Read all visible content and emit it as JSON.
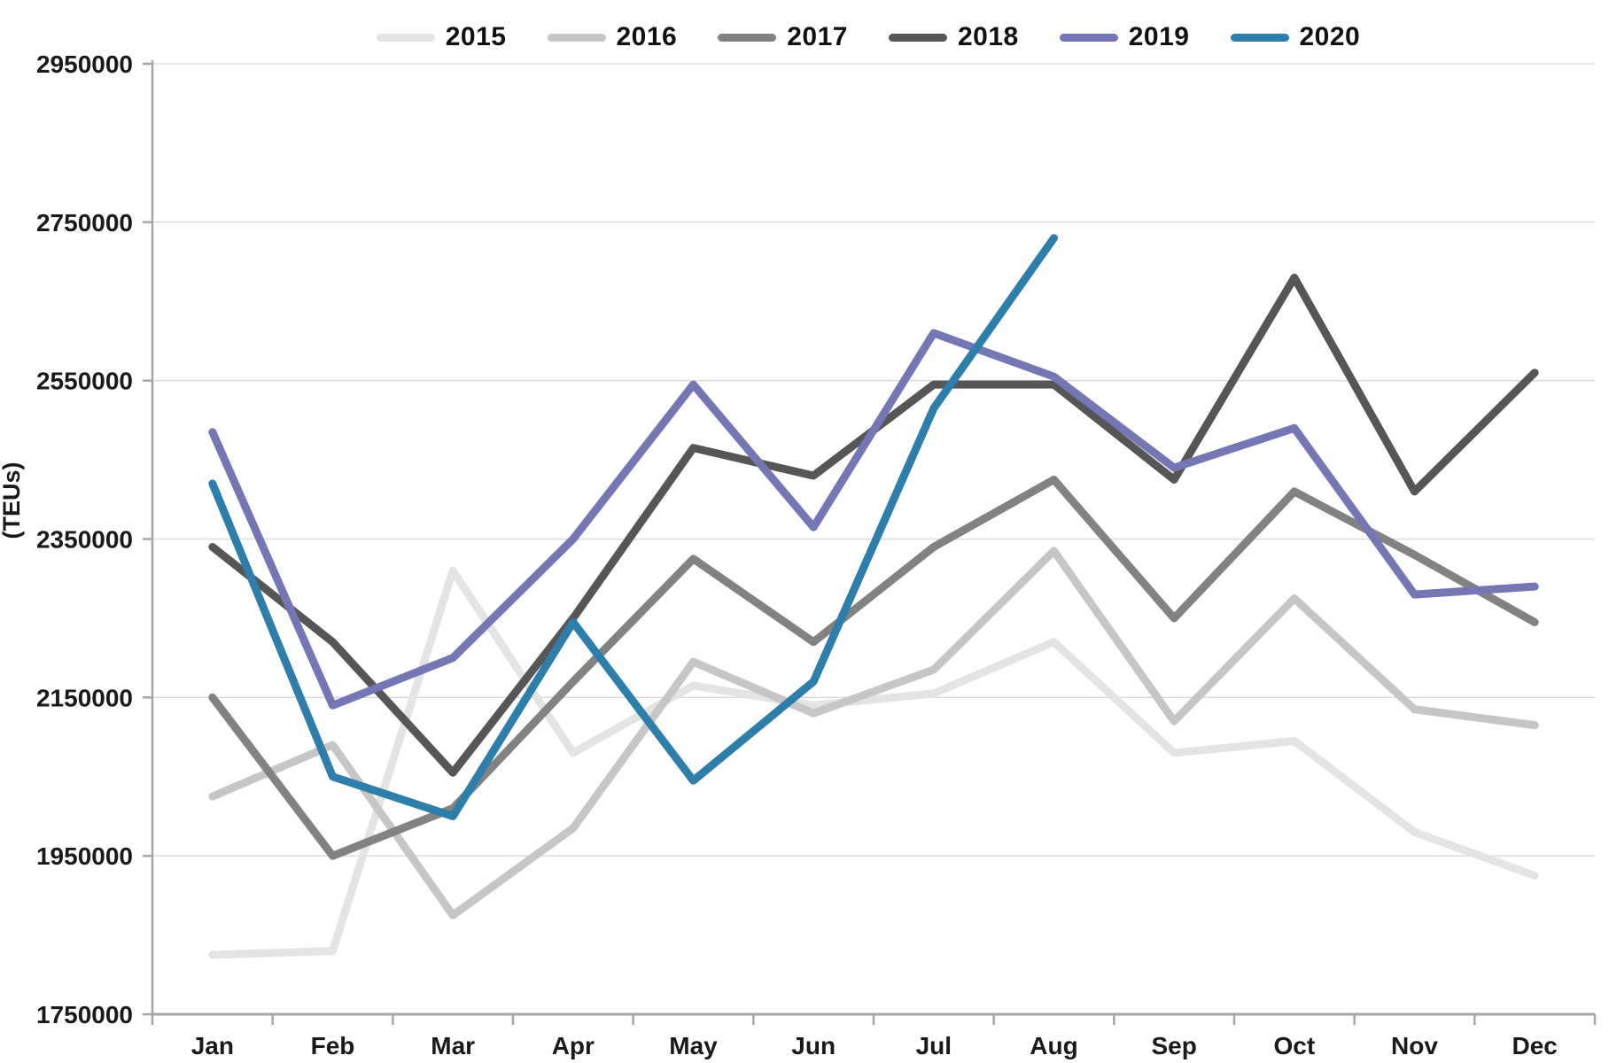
{
  "chart_data": {
    "type": "line",
    "title": "",
    "xlabel": "",
    "ylabel": "(TEUs)",
    "categories": [
      "Jan",
      "Feb",
      "Mar",
      "Apr",
      "May",
      "Jun",
      "Jul",
      "Aug",
      "Sep",
      "Oct",
      "Nov",
      "Dec"
    ],
    "ylim": [
      1750000,
      2950000
    ],
    "ytick_step": 200000,
    "yticks": [
      "1750000",
      "1950000",
      "2150000",
      "2350000",
      "2550000",
      "2750000",
      "2950000"
    ],
    "grid": "horizontal",
    "legend_position": "top",
    "series": [
      {
        "name": "2015",
        "color": "#e4e4e4",
        "values": [
          1825000,
          1830000,
          2310000,
          2080000,
          2165000,
          2140000,
          2155000,
          2220000,
          2080000,
          2095000,
          1980000,
          1925000
        ]
      },
      {
        "name": "2016",
        "color": "#c6c6c6",
        "values": [
          2025000,
          2090000,
          1875000,
          1985000,
          2195000,
          2130000,
          2185000,
          2335000,
          2120000,
          2275000,
          2135000,
          2115000
        ]
      },
      {
        "name": "2017",
        "color": "#828282",
        "values": [
          2150000,
          1950000,
          2010000,
          2170000,
          2325000,
          2220000,
          2340000,
          2425000,
          2250000,
          2410000,
          2330000,
          2245000
        ]
      },
      {
        "name": "2018",
        "color": "#565656",
        "values": [
          2340000,
          2220000,
          2055000,
          2250000,
          2465000,
          2430000,
          2545000,
          2545000,
          2425000,
          2680000,
          2410000,
          2560000
        ]
      },
      {
        "name": "2019",
        "color": "#7577b5",
        "values": [
          2485000,
          2140000,
          2200000,
          2350000,
          2545000,
          2365000,
          2610000,
          2555000,
          2440000,
          2490000,
          2280000,
          2290000
        ]
      },
      {
        "name": "2020",
        "color": "#2e7eac",
        "values": [
          2420000,
          2050000,
          2000000,
          2245000,
          2045000,
          2170000,
          2515000,
          2730000
        ]
      }
    ],
    "style": {
      "grid_color": "#d9d9d9",
      "axis_color": "#a6a6a6",
      "line_width": 9
    }
  }
}
